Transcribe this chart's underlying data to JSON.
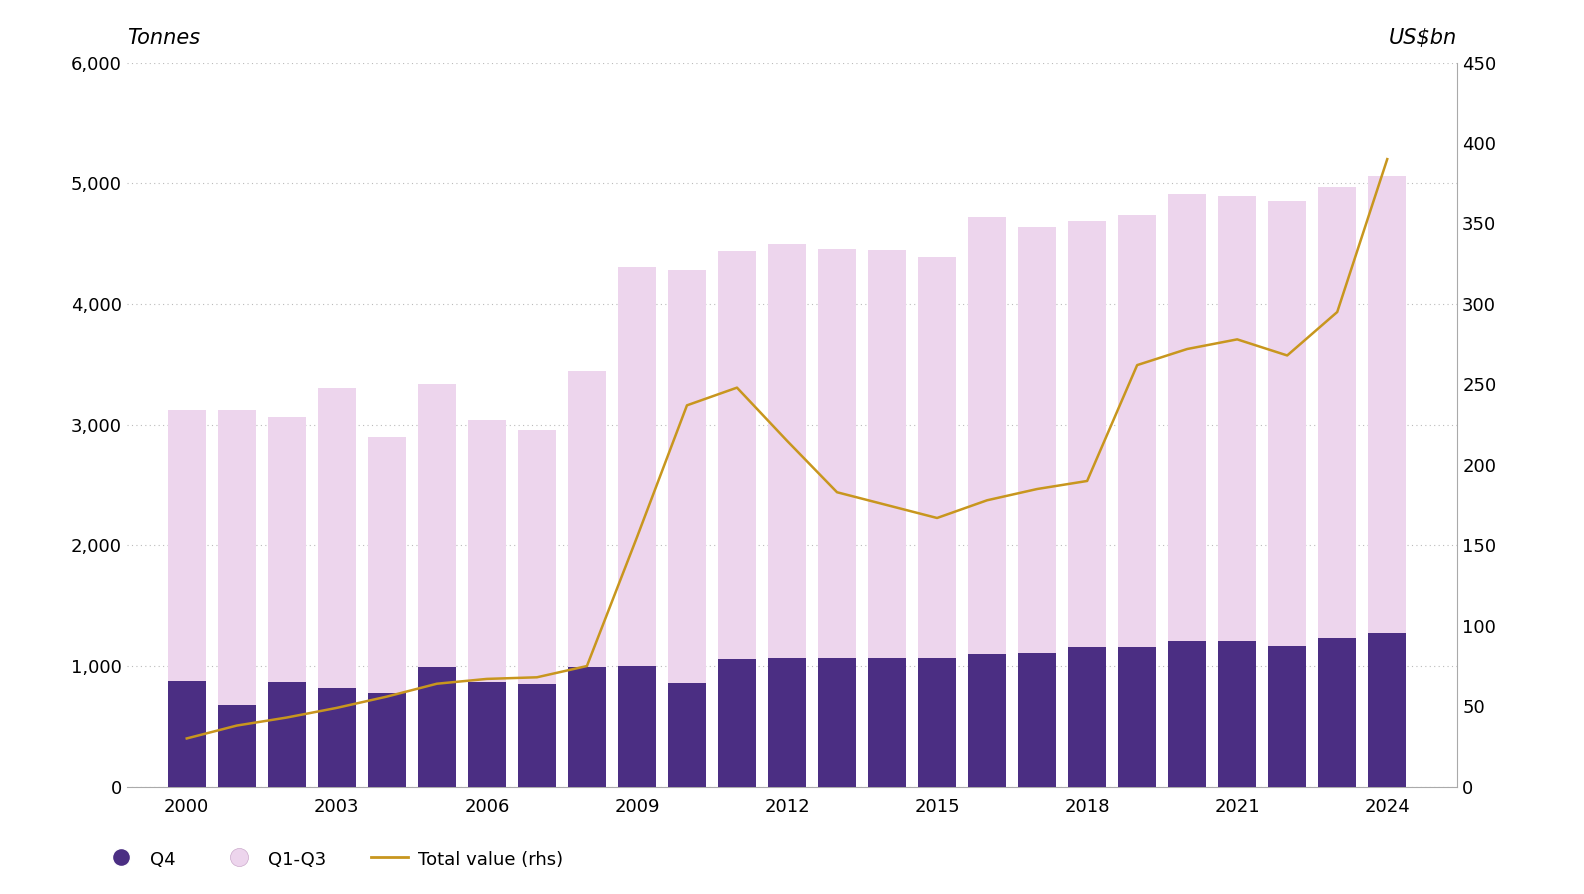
{
  "years": [
    2000,
    2001,
    2002,
    2003,
    2004,
    2005,
    2006,
    2007,
    2008,
    2009,
    2010,
    2011,
    2012,
    2013,
    2014,
    2015,
    2016,
    2017,
    2018,
    2019,
    2020,
    2021,
    2022,
    2023,
    2024
  ],
  "q4": [
    880,
    680,
    870,
    820,
    780,
    990,
    870,
    855,
    995,
    1000,
    860,
    1055,
    1065,
    1065,
    1070,
    1065,
    1100,
    1110,
    1155,
    1155,
    1210,
    1205,
    1170,
    1230,
    1270
  ],
  "q1q3": [
    2240,
    2440,
    2190,
    2480,
    2120,
    2350,
    2170,
    2100,
    2450,
    3310,
    3420,
    3380,
    3430,
    3390,
    3380,
    3320,
    3620,
    3530,
    3530,
    3580,
    3700,
    3690,
    3680,
    3740,
    3790
  ],
  "total_value": [
    30,
    38,
    43,
    49,
    56,
    64,
    67,
    68,
    75,
    155,
    237,
    248,
    215,
    183,
    175,
    167,
    178,
    185,
    190,
    262,
    272,
    278,
    268,
    295,
    390
  ],
  "bar_color_q4": "#4B2E83",
  "bar_color_q1q3": "#EDD5ED",
  "line_color": "#C8961E",
  "ylim_left": [
    0,
    6000
  ],
  "ylim_right": [
    0,
    450
  ],
  "yticks_left": [
    0,
    1000,
    2000,
    3000,
    4000,
    5000,
    6000
  ],
  "yticks_right": [
    0,
    50,
    100,
    150,
    200,
    250,
    300,
    350,
    400,
    450
  ],
  "ylabel_left": "Tonnes",
  "ylabel_right": "US$bn",
  "background_color": "#FFFFFF",
  "grid_color": "#BBBBBB",
  "xticks": [
    2000,
    2003,
    2006,
    2009,
    2012,
    2015,
    2018,
    2021,
    2024
  ],
  "legend_labels": [
    "Q4",
    "Q1-Q3",
    "Total value (rhs)"
  ],
  "bar_width": 0.75,
  "tick_fontsize": 13,
  "label_fontsize": 15
}
